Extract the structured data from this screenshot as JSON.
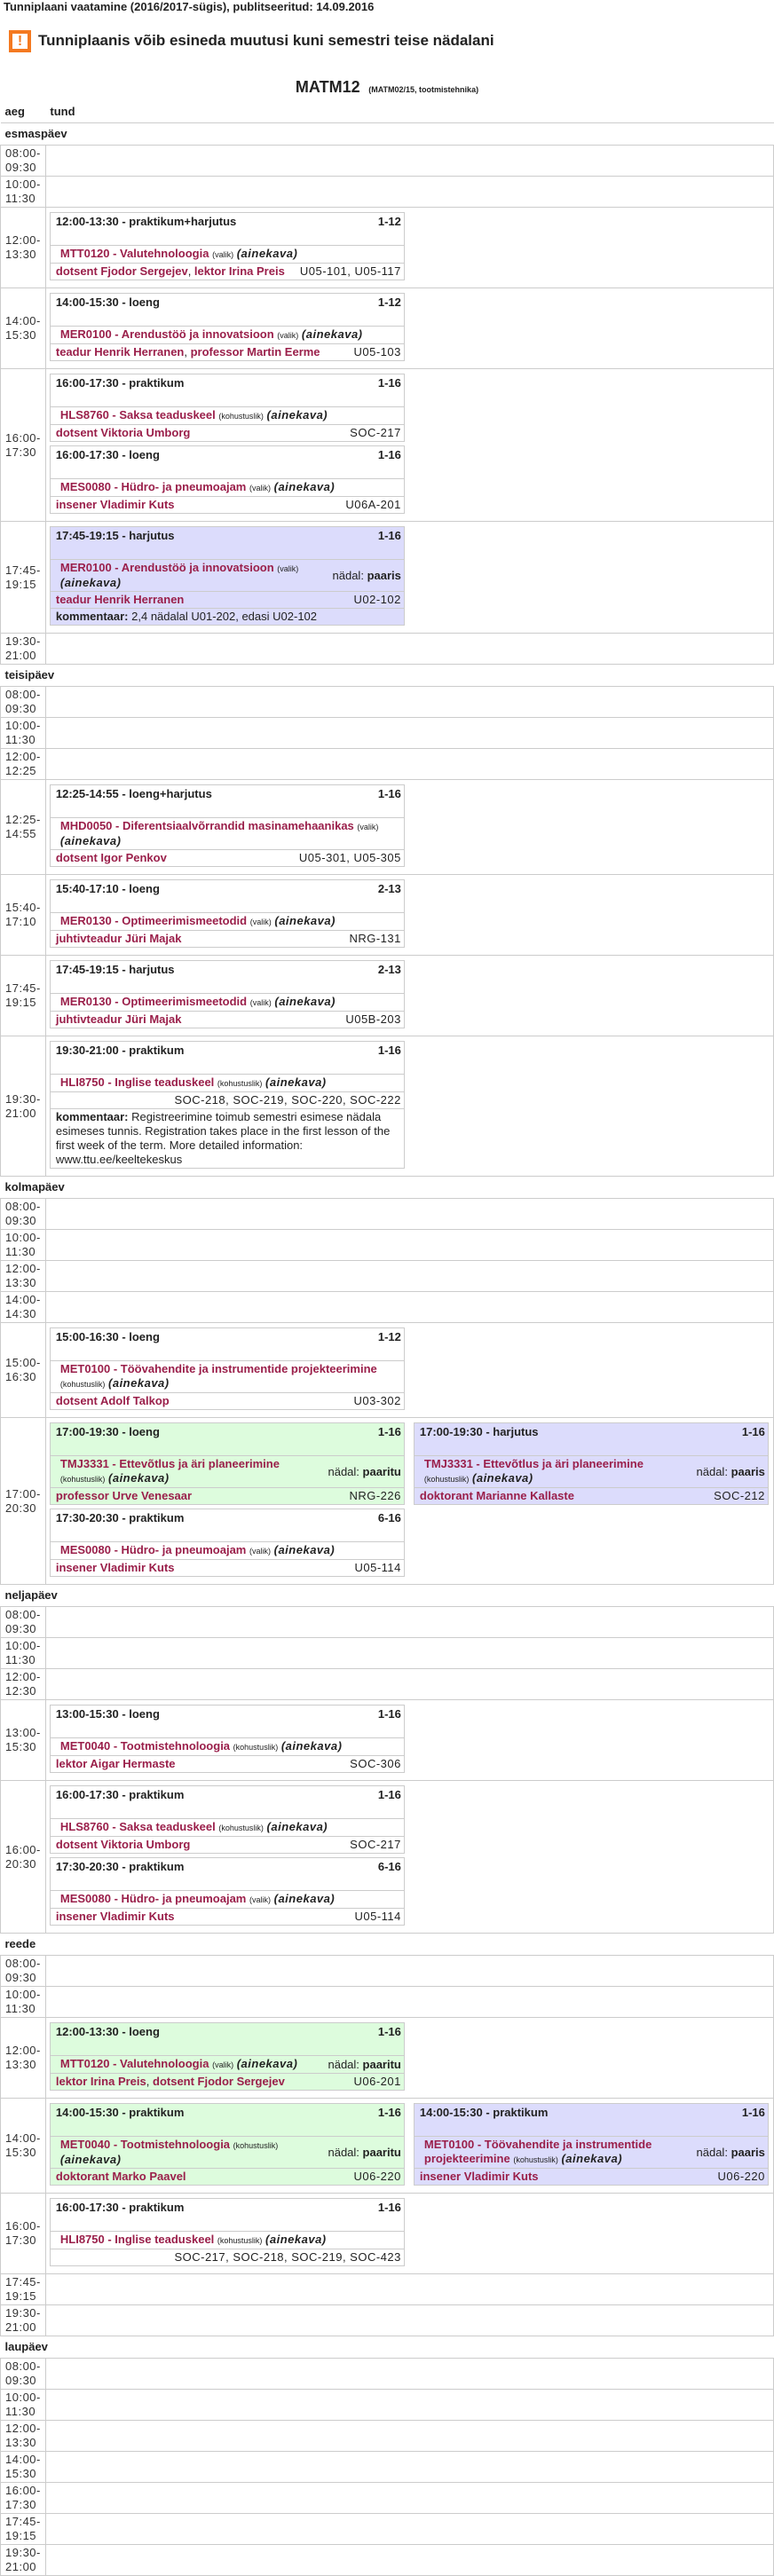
{
  "header": {
    "title": "Tunniplaani vaatamine (2016/2017-sügis), publitseeritud: 14.09.2016",
    "warning": "Tunniplaanis võib esineda muutusi kuni semestri teise nädalani",
    "warning_icon": "exclamation-icon",
    "group": "MATM12",
    "group_sub": "(MATM02/15, tootmistehnika)"
  },
  "table": {
    "col_time": "aeg",
    "col_lesson": "tund"
  },
  "labels": {
    "ainekava": "(ainekava)",
    "week": "nädal:",
    "comment": "kommentaar:"
  },
  "colors": {
    "accent": "#9a1f4a",
    "warning": "#f47920",
    "green": "#ddfcdd",
    "purple": "#dcdcfc"
  },
  "days": [
    {
      "name": "esmaspäev",
      "slots": [
        {
          "start": "08:00",
          "end": "09:30",
          "columns": []
        },
        {
          "start": "10:00",
          "end": "11:30",
          "columns": []
        },
        {
          "start": "12:00",
          "end": "13:30",
          "columns": [
            [
              {
                "time": "12:00-13:30",
                "type": "praktikum+harjutus",
                "weeks": "1-12",
                "code": "MTT0120",
                "title": "Valutehnoloogia",
                "status": "(valik)",
                "teachers": [
                  "dotsent Fjodor Sergejev",
                  "lektor Irina Preis"
                ],
                "rooms": "U05-101,  U05-117"
              }
            ]
          ]
        },
        {
          "start": "14:00",
          "end": "15:30",
          "columns": [
            [
              {
                "time": "14:00-15:30",
                "type": "loeng",
                "weeks": "1-12",
                "code": "MER0100",
                "title": "Arendustöö ja innovatsioon",
                "status": "(valik)",
                "teachers": [
                  "teadur Henrik Herranen",
                  "professor Martin Eerme"
                ],
                "rooms": "U05-103"
              }
            ]
          ]
        },
        {
          "start": "16:00",
          "end": "17:30",
          "columns": [
            [
              {
                "time": "16:00-17:30",
                "type": "praktikum",
                "weeks": "1-16",
                "code": "HLS8760",
                "title": "Saksa teaduskeel",
                "status": "(kohustuslik)",
                "teachers": [
                  "dotsent Viktoria Umborg"
                ],
                "rooms": "SOC-217"
              },
              {
                "time": "16:00-17:30",
                "type": "loeng",
                "weeks": "1-16",
                "code": "MES0080",
                "title": "Hüdro- ja pneumoajam",
                "status": "(valik)",
                "teachers": [
                  "insener Vladimir Kuts"
                ],
                "rooms": "U06A-201"
              }
            ]
          ]
        },
        {
          "start": "17:45",
          "end": "19:15",
          "columns": [
            [
              {
                "time": "17:45-19:15",
                "type": "harjutus",
                "weeks": "1-16",
                "code": "MER0100",
                "title": "Arendustöö ja innovatsioon",
                "status": "(valik)",
                "parity": "paaris",
                "color": "purple",
                "teachers": [
                  "teadur Henrik Herranen"
                ],
                "rooms": "U02-102",
                "comment": "2,4 nädalal U01-202, edasi U02-102"
              }
            ]
          ]
        },
        {
          "start": "19:30",
          "end": "21:00",
          "columns": []
        }
      ]
    },
    {
      "name": "teisipäev",
      "slots": [
        {
          "start": "08:00",
          "end": "09:30",
          "columns": []
        },
        {
          "start": "10:00",
          "end": "11:30",
          "columns": []
        },
        {
          "start": "12:00",
          "end": "12:25",
          "columns": []
        },
        {
          "start": "12:25",
          "end": "14:55",
          "columns": [
            [
              {
                "time": "12:25-14:55",
                "type": "loeng+harjutus",
                "weeks": "1-16",
                "code": "MHD0050",
                "title": "Diferentsiaalvõrrandid masinamehaanikas",
                "status": "(valik)",
                "teachers": [
                  "dotsent Igor Penkov"
                ],
                "rooms": "U05-301,  U05-305"
              }
            ]
          ]
        },
        {
          "start": "15:40",
          "end": "17:10",
          "columns": [
            [
              {
                "time": "15:40-17:10",
                "type": "loeng",
                "weeks": "2-13",
                "code": "MER0130",
                "title": "Optimeerimismeetodid",
                "status": "(valik)",
                "teachers": [
                  "juhtivteadur Jüri Majak"
                ],
                "rooms": "NRG-131"
              }
            ]
          ]
        },
        {
          "start": "17:45",
          "end": "19:15",
          "columns": [
            [
              {
                "time": "17:45-19:15",
                "type": "harjutus",
                "weeks": "2-13",
                "code": "MER0130",
                "title": "Optimeerimismeetodid",
                "status": "(valik)",
                "teachers": [
                  "juhtivteadur Jüri Majak"
                ],
                "rooms": "U05B-203"
              }
            ]
          ]
        },
        {
          "start": "19:30",
          "end": "21:00",
          "columns": [
            [
              {
                "time": "19:30-21:00",
                "type": "praktikum",
                "weeks": "1-16",
                "code": "HLI8750",
                "title": "Inglise teaduskeel",
                "status": "(kohustuslik)",
                "teachers": [],
                "rooms": "SOC-218,  SOC-219,  SOC-220,  SOC-222",
                "comment": "Registreerimine toimub semestri esimese nädala esimeses tunnis. Registration takes place in the first lesson of the first week of the term. More detailed information: www.ttu.ee/keeltekeskus"
              }
            ]
          ]
        }
      ]
    },
    {
      "name": "kolmapäev",
      "slots": [
        {
          "start": "08:00",
          "end": "09:30",
          "columns": []
        },
        {
          "start": "10:00",
          "end": "11:30",
          "columns": []
        },
        {
          "start": "12:00",
          "end": "13:30",
          "columns": []
        },
        {
          "start": "14:00",
          "end": "14:30",
          "columns": []
        },
        {
          "start": "15:00",
          "end": "16:30",
          "columns": [
            [
              {
                "time": "15:00-16:30",
                "type": "loeng",
                "weeks": "1-12",
                "code": "MET0100",
                "title": "Töövahendite ja instrumentide projekteerimine",
                "status": "(kohustuslik)",
                "teachers": [
                  "dotsent Adolf Talkop"
                ],
                "rooms": "U03-302"
              }
            ]
          ]
        },
        {
          "start": "17:00",
          "end": "20:30",
          "columns": [
            [
              {
                "time": "17:00-19:30",
                "type": "loeng",
                "weeks": "1-16",
                "code": "TMJ3331",
                "title": "Ettevõtlus ja äri planeerimine",
                "status": "(kohustuslik)",
                "parity": "paaritu",
                "color": "green",
                "teachers": [
                  "professor Urve Venesaar"
                ],
                "rooms": "NRG-226"
              },
              {
                "time": "17:30-20:30",
                "type": "praktikum",
                "weeks": "6-16",
                "code": "MES0080",
                "title": "Hüdro- ja pneumoajam",
                "status": "(valik)",
                "teachers": [
                  "insener Vladimir Kuts"
                ],
                "rooms": "U05-114"
              }
            ],
            [
              {
                "time": "17:00-19:30",
                "type": "harjutus",
                "weeks": "1-16",
                "code": "TMJ3331",
                "title": "Ettevõtlus ja äri planeerimine",
                "status": "(kohustuslik)",
                "parity": "paaris",
                "color": "purple",
                "teachers": [
                  "doktorant Marianne Kallaste"
                ],
                "rooms": "SOC-212"
              }
            ]
          ]
        }
      ]
    },
    {
      "name": "neljapäev",
      "slots": [
        {
          "start": "08:00",
          "end": "09:30",
          "columns": []
        },
        {
          "start": "10:00",
          "end": "11:30",
          "columns": []
        },
        {
          "start": "12:00",
          "end": "12:30",
          "columns": []
        },
        {
          "start": "13:00",
          "end": "15:30",
          "columns": [
            [
              {
                "time": "13:00-15:30",
                "type": "loeng",
                "weeks": "1-16",
                "code": "MET0040",
                "title": "Tootmistehnoloogia",
                "status": "(kohustuslik)",
                "teachers": [
                  "lektor Aigar Hermaste"
                ],
                "rooms": "SOC-306"
              }
            ]
          ]
        },
        {
          "start": "16:00",
          "end": "20:30",
          "columns": [
            [
              {
                "time": "16:00-17:30",
                "type": "praktikum",
                "weeks": "1-16",
                "code": "HLS8760",
                "title": "Saksa teaduskeel",
                "status": "(kohustuslik)",
                "teachers": [
                  "dotsent Viktoria Umborg"
                ],
                "rooms": "SOC-217"
              },
              {
                "time": "17:30-20:30",
                "type": "praktikum",
                "weeks": "6-16",
                "code": "MES0080",
                "title": "Hüdro- ja pneumoajam",
                "status": "(valik)",
                "teachers": [
                  "insener Vladimir Kuts"
                ],
                "rooms": "U05-114"
              }
            ]
          ]
        }
      ]
    },
    {
      "name": "reede",
      "slots": [
        {
          "start": "08:00",
          "end": "09:30",
          "columns": []
        },
        {
          "start": "10:00",
          "end": "11:30",
          "columns": []
        },
        {
          "start": "12:00",
          "end": "13:30",
          "columns": [
            [
              {
                "time": "12:00-13:30",
                "type": "loeng",
                "weeks": "1-16",
                "code": "MTT0120",
                "title": "Valutehnoloogia",
                "status": "(valik)",
                "parity": "paaritu",
                "color": "green",
                "teachers": [
                  "lektor Irina Preis",
                  "dotsent Fjodor Sergejev"
                ],
                "rooms": "U06-201"
              }
            ]
          ]
        },
        {
          "start": "14:00",
          "end": "15:30",
          "columns": [
            [
              {
                "time": "14:00-15:30",
                "type": "praktikum",
                "weeks": "1-16",
                "code": "MET0040",
                "title": "Tootmistehnoloogia",
                "status": "(kohustuslik)",
                "parity": "paaritu",
                "color": "green",
                "teachers": [
                  "doktorant Marko Paavel"
                ],
                "rooms": "U06-220"
              }
            ],
            [
              {
                "time": "14:00-15:30",
                "type": "praktikum",
                "weeks": "1-16",
                "code": "MET0100",
                "title": "Töövahendite ja instrumentide projekteerimine",
                "status": "(kohustuslik)",
                "parity": "paaris",
                "color": "purple",
                "teachers": [
                  "insener Vladimir Kuts"
                ],
                "rooms": "U06-220"
              }
            ]
          ]
        },
        {
          "start": "16:00",
          "end": "17:30",
          "columns": [
            [
              {
                "time": "16:00-17:30",
                "type": "praktikum",
                "weeks": "1-16",
                "code": "HLI8750",
                "title": "Inglise teaduskeel",
                "status": "(kohustuslik)",
                "teachers": [],
                "rooms": "SOC-217,  SOC-218,  SOC-219,  SOC-423"
              }
            ]
          ]
        },
        {
          "start": "17:45",
          "end": "19:15",
          "columns": []
        },
        {
          "start": "19:30",
          "end": "21:00",
          "columns": []
        }
      ]
    },
    {
      "name": "laupäev",
      "slots": [
        {
          "start": "08:00",
          "end": "09:30",
          "columns": []
        },
        {
          "start": "10:00",
          "end": "11:30",
          "columns": []
        },
        {
          "start": "12:00",
          "end": "13:30",
          "columns": []
        },
        {
          "start": "14:00",
          "end": "15:30",
          "columns": []
        },
        {
          "start": "16:00",
          "end": "17:30",
          "columns": []
        },
        {
          "start": "17:45",
          "end": "19:15",
          "columns": []
        },
        {
          "start": "19:30",
          "end": "21:00",
          "columns": []
        }
      ]
    }
  ]
}
